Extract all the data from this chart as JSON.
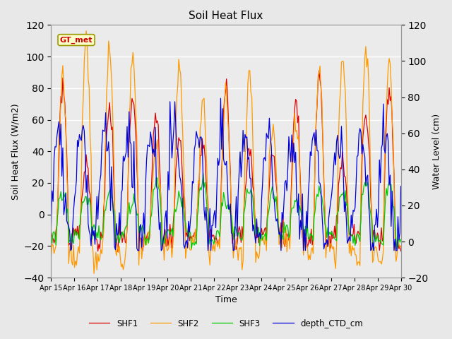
{
  "title": "Soil Heat Flux",
  "ylabel_left": "Soil Heat Flux (W/m2)",
  "ylabel_right": "Water Level (cm)",
  "xlabel": "Time",
  "ylim_left": [
    -40,
    120
  ],
  "ylim_right": [
    -20,
    120
  ],
  "yticks_left": [
    -40,
    -20,
    0,
    20,
    40,
    60,
    80,
    100,
    120
  ],
  "yticks_right": [
    -20,
    0,
    20,
    40,
    60,
    80,
    100,
    120
  ],
  "x_tick_labels": [
    "Apr 15",
    "Apr 16",
    "Apr 17",
    "Apr 18",
    "Apr 19",
    "Apr 20",
    "Apr 21",
    "Apr 22",
    "Apr 23",
    "Apr 24",
    "Apr 25",
    "Apr 26",
    "Apr 27",
    "Apr 28",
    "Apr 29",
    "Apr 30"
  ],
  "colors": {
    "SHF1": "#dd0000",
    "SHF2": "#ff9900",
    "SHF3": "#00cc00",
    "depth_CTD_cm": "#0000dd"
  },
  "annotation_text": "GT_met",
  "annotation_color": "#cc0000",
  "annotation_bg": "#ffffcc",
  "annotation_edge": "#999900",
  "fig_bg": "#e8e8e8",
  "plot_bg": "#ebebeb",
  "grid_color": "#ffffff",
  "linewidth": 0.9,
  "figsize": [
    6.4,
    4.8
  ],
  "dpi": 100
}
